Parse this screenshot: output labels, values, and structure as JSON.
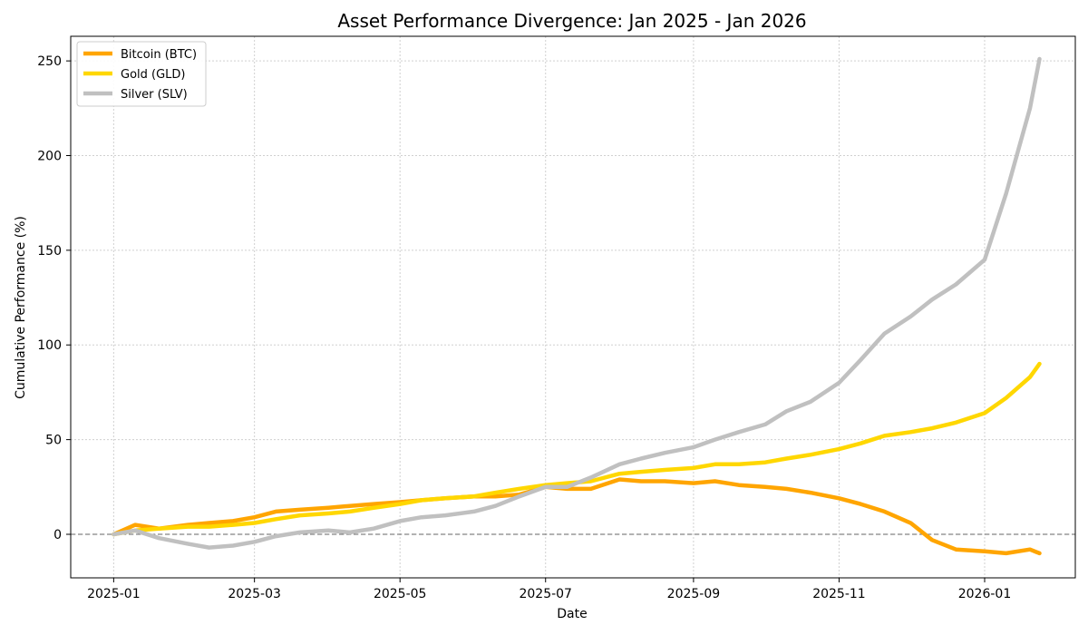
{
  "chart_data": {
    "type": "line",
    "title": "Asset Performance Divergence: Jan 2025 - Jan 2026",
    "xlabel": "Date",
    "ylabel": "Cumulative Performance (%)",
    "x_tick_labels": [
      "2025-01",
      "2025-03",
      "2025-05",
      "2025-07",
      "2025-09",
      "2025-11",
      "2026-01"
    ],
    "y_ticks": [
      0,
      50,
      100,
      150,
      200,
      250
    ],
    "ylim": [
      -23,
      263
    ],
    "xlim": [
      "2024-12-14",
      "2026-02-08"
    ],
    "grid": true,
    "baseline": 0,
    "legend_position": "top-left",
    "x": [
      "2025-01-01",
      "2025-01-10",
      "2025-01-20",
      "2025-02-01",
      "2025-02-10",
      "2025-02-20",
      "2025-03-01",
      "2025-03-10",
      "2025-03-20",
      "2025-04-01",
      "2025-04-10",
      "2025-04-20",
      "2025-05-01",
      "2025-05-10",
      "2025-05-20",
      "2025-06-01",
      "2025-06-10",
      "2025-06-20",
      "2025-07-01",
      "2025-07-10",
      "2025-07-20",
      "2025-08-01",
      "2025-08-10",
      "2025-08-20",
      "2025-09-01",
      "2025-09-10",
      "2025-09-20",
      "2025-10-01",
      "2025-10-10",
      "2025-10-20",
      "2025-11-01",
      "2025-11-10",
      "2025-11-20",
      "2025-12-01",
      "2025-12-10",
      "2025-12-20",
      "2026-01-01",
      "2026-01-10",
      "2026-01-20",
      "2026-01-24"
    ],
    "series": [
      {
        "name": "Bitcoin (BTC)",
        "color": "#FFA500",
        "values": [
          0,
          5,
          3,
          5,
          6,
          7,
          9,
          12,
          13,
          14,
          15,
          16,
          17,
          18,
          19,
          20,
          20,
          21,
          25,
          24,
          24,
          29,
          28,
          28,
          27,
          28,
          26,
          25,
          24,
          22,
          19,
          16,
          12,
          6,
          -3,
          -8,
          -9,
          -10,
          -8,
          -10
        ]
      },
      {
        "name": "Gold (GLD)",
        "color": "#FFD700",
        "values": [
          0,
          2,
          3,
          4,
          4,
          5,
          6,
          8,
          10,
          11,
          12,
          14,
          16,
          18,
          19,
          20,
          22,
          24,
          26,
          27,
          28,
          32,
          33,
          34,
          35,
          37,
          37,
          38,
          40,
          42,
          45,
          48,
          52,
          54,
          56,
          59,
          64,
          72,
          83,
          90
        ]
      },
      {
        "name": "Silver (SLV)",
        "color": "#C0C0C0",
        "values": [
          0,
          2,
          -2,
          -5,
          -7,
          -6,
          -4,
          -1,
          1,
          2,
          1,
          3,
          7,
          9,
          10,
          12,
          15,
          20,
          25,
          25,
          30,
          37,
          40,
          43,
          46,
          50,
          54,
          58,
          65,
          70,
          80,
          92,
          106,
          115,
          124,
          132,
          145,
          180,
          225,
          251
        ]
      }
    ]
  }
}
